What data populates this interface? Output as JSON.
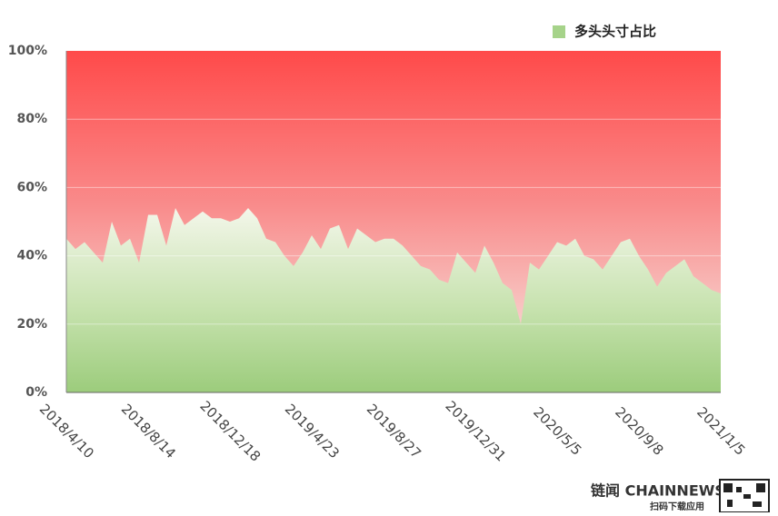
{
  "chart_data": {
    "type": "area",
    "categories": [
      "2018/4/10",
      null,
      null,
      null,
      null,
      null,
      null,
      null,
      null,
      "2018/8/14",
      null,
      null,
      null,
      null,
      null,
      null,
      null,
      null,
      "2018/12/18",
      null,
      null,
      null,
      null,
      null,
      null,
      null,
      null,
      "2019/4/23",
      null,
      null,
      null,
      null,
      null,
      null,
      null,
      null,
      "2019/8/27",
      null,
      null,
      null,
      null,
      null,
      null,
      null,
      null,
      "2019/12/31",
      null,
      null,
      null,
      null,
      null,
      null,
      null,
      null,
      "2020/5/5",
      null,
      null,
      null,
      null,
      null,
      null,
      null,
      null,
      "2020/9/8",
      null,
      null,
      null,
      null,
      null,
      null,
      null,
      null,
      "2021/1/5"
    ],
    "series": [
      {
        "name": "多头头寸占比",
        "color": "#a6d38a",
        "values": [
          45,
          42,
          44,
          41,
          38,
          50,
          43,
          45,
          38,
          52,
          52,
          43,
          54,
          49,
          51,
          53,
          51,
          51,
          50,
          51,
          54,
          51,
          45,
          44,
          40,
          37,
          41,
          46,
          42,
          48,
          49,
          42,
          48,
          46,
          44,
          45,
          45,
          43,
          40,
          37,
          36,
          33,
          32,
          41,
          38,
          35,
          43,
          38,
          32,
          30,
          20,
          38,
          36,
          40,
          44,
          43,
          45,
          40,
          39,
          36,
          40,
          44,
          45,
          40,
          36,
          31,
          35,
          37,
          39,
          34,
          32,
          30,
          29
        ]
      }
    ],
    "ylim": [
      0,
      100
    ],
    "yticks": [
      {
        "value": 0,
        "label": "0%"
      },
      {
        "value": 20,
        "label": "20%"
      },
      {
        "value": 40,
        "label": "40%"
      },
      {
        "value": 60,
        "label": "60%"
      },
      {
        "value": 80,
        "label": "80%"
      },
      {
        "value": 100,
        "label": "100%"
      }
    ],
    "grid": true,
    "legend": "top-right",
    "annotations": [
      "链闻 CHAINNEWS",
      "扫码下载应用"
    ]
  }
}
